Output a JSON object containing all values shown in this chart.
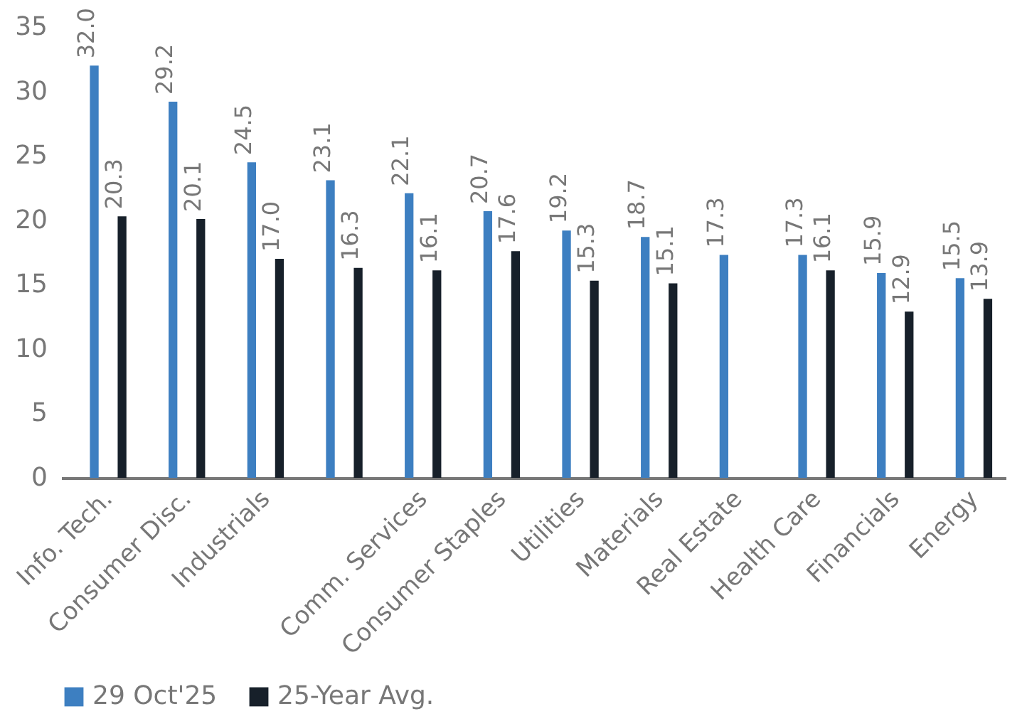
{
  "chart_data": {
    "type": "bar",
    "categories": [
      "Info. Tech.",
      "Consumer Disc.",
      "Industrials",
      null,
      "Comm. Services",
      "Consumer Staples",
      "Utilities",
      "Materials",
      "Real Estate",
      "Health Care",
      "Financials",
      "Energy"
    ],
    "series": [
      {
        "name": "29 Oct'25",
        "color": "#3d7fc1",
        "values": [
          32.0,
          29.2,
          24.5,
          23.1,
          22.1,
          20.7,
          19.2,
          18.7,
          17.3,
          17.3,
          15.9,
          15.5
        ],
        "value_labels": [
          "32.0",
          "29.2",
          "24.5",
          "23.1",
          "22.1",
          "20.7",
          "19.2",
          "18.7",
          "17.3",
          "17.3",
          "15.9",
          "15.5"
        ]
      },
      {
        "name": "25-Year Avg.",
        "color": "#17202a",
        "values": [
          20.3,
          20.1,
          17.0,
          16.3,
          16.1,
          17.6,
          15.3,
          15.1,
          null,
          16.1,
          12.9,
          13.9
        ],
        "value_labels": [
          "20.3",
          "20.1",
          "17.0",
          "16.3",
          "16.1",
          "17.6",
          "15.3",
          "15.1",
          null,
          "16.1",
          "12.9",
          "13.9"
        ]
      }
    ],
    "ylim": [
      0,
      35
    ],
    "yticks": [
      0,
      5,
      10,
      15,
      20,
      25,
      30,
      35
    ],
    "grid": false,
    "legend": "bottom"
  }
}
